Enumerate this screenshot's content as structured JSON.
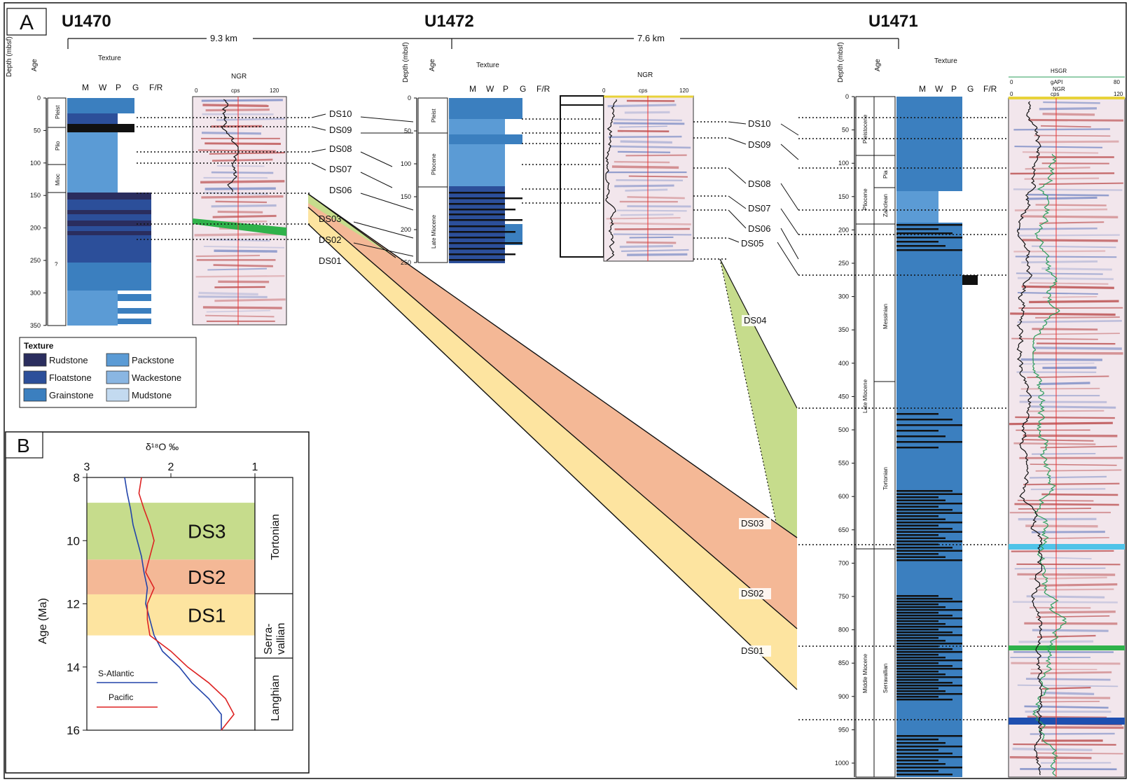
{
  "panel_a": {
    "letter": "A",
    "sites": [
      {
        "name": "U1470",
        "texture_title": "Texture",
        "depth_label": "Depth (mbsf)",
        "age_label": "Age",
        "log_label": "NGR",
        "log_ticks": [
          "0",
          "cps",
          "120"
        ],
        "depth_ticks": [
          "0",
          "50",
          "100",
          "150",
          "200",
          "250",
          "300",
          "350"
        ],
        "ages": [
          "Pleist",
          "Plio",
          "Mioc",
          "?"
        ]
      },
      {
        "name": "U1472",
        "texture_title": "Texture",
        "depth_label": "Depth (mbsf)",
        "age_label": "Age",
        "log_label": "NGR",
        "log_ticks": [
          "0",
          "cps",
          "120"
        ],
        "depth_ticks": [
          "0",
          "50",
          "100",
          "150",
          "200",
          "250"
        ],
        "ages": [
          "Pleist",
          "Pliocene",
          "Late Miocene"
        ]
      },
      {
        "name": "U1471",
        "texture_title": "Texture",
        "depth_label": "Depth (mbsf)",
        "age_label": "Age",
        "log_label": "NGR",
        "log_ticks": [
          "0",
          "cps",
          "120"
        ],
        "hsgr_label": "HSGR",
        "hsgr_ticks": [
          "0",
          "gAPI",
          "80"
        ],
        "depth_ticks": [
          "0",
          "50",
          "100",
          "150",
          "200",
          "250",
          "300",
          "350",
          "400",
          "450",
          "500",
          "550",
          "600",
          "650",
          "700",
          "750",
          "800",
          "850",
          "900",
          "950",
          "1000"
        ],
        "epochs": [
          "Pleistocene",
          "Pliocene",
          "Late Miocene",
          "Middle Miocene"
        ],
        "stages": [
          "Pia",
          "Zanclean",
          "Messinian",
          "Tortonian",
          "Serravallian"
        ]
      }
    ],
    "texture_axis": [
      "M",
      "W",
      "P",
      "G",
      "F/R"
    ],
    "distances": [
      "9.3 km",
      "7.6 km"
    ],
    "sequences_u1470": [
      "DS10",
      "DS09",
      "DS08",
      "DS07",
      "DS06",
      "DS03",
      "DS02",
      "DS01"
    ],
    "sequences_u1471": [
      "DS10",
      "DS09",
      "DS08",
      "DS07",
      "DS06",
      "DS05",
      "DS04",
      "DS03",
      "DS02",
      "DS01"
    ],
    "legend": {
      "title": "Texture",
      "items": [
        "Rudstone",
        "Floatstone",
        "Grainstone",
        "Packstone",
        "Wackestone",
        "Mudstone"
      ],
      "colors": [
        "#2a2d5e",
        "#2c4f9a",
        "#3b7fbf",
        "#5b9bd5",
        "#8ab6e2",
        "#c3daf0"
      ]
    }
  },
  "panel_b": {
    "letter": "B",
    "xlabel": "δ¹⁸O ‰",
    "ylabel": "Age (Ma)",
    "x_ticks": [
      "3",
      "2",
      "1"
    ],
    "y_ticks": [
      "8",
      "10",
      "12",
      "14",
      "16"
    ],
    "bands": [
      "DS3",
      "DS2",
      "DS1"
    ],
    "band_colors": [
      "#c6dc8c",
      "#f4b896",
      "#fde4a0"
    ],
    "stages": [
      "Tortonian",
      "Serra-\nvallian",
      "Langhian"
    ],
    "legend": [
      {
        "name": "S-Atlantic",
        "color": "#2244aa"
      },
      {
        "name": "Pacific",
        "color": "#dd2222"
      }
    ]
  },
  "chart_data": {
    "type": "line",
    "xlabel": "δ¹⁸O ‰",
    "ylabel": "Age (Ma)",
    "xlim": [
      3,
      1
    ],
    "ylim": [
      16,
      8
    ],
    "series": [
      {
        "name": "S-Atlantic",
        "x": [
          2.55,
          2.52,
          2.48,
          2.45,
          2.4,
          2.35,
          2.32,
          2.28,
          2.3,
          2.25,
          2.2,
          2.1,
          1.9,
          1.75,
          1.55,
          1.4,
          1.4
        ],
        "y": [
          8,
          8.5,
          9,
          9.5,
          10,
          10.5,
          11,
          11.5,
          12,
          12.5,
          13,
          13.5,
          14,
          14.5,
          15,
          15.5,
          16
        ]
      },
      {
        "name": "Pacific",
        "x": [
          2.35,
          2.38,
          2.32,
          2.25,
          2.2,
          2.25,
          2.3,
          2.2,
          2.28,
          2.28,
          2.25,
          2.0,
          1.8,
          1.55,
          1.35,
          1.25,
          1.4
        ],
        "y": [
          8,
          8.5,
          9,
          9.5,
          10,
          10.5,
          11,
          11.5,
          12,
          12.5,
          13,
          13.5,
          14,
          14.5,
          15,
          15.5,
          16
        ]
      }
    ],
    "bands": [
      {
        "name": "DS3",
        "from": 8.8,
        "to": 10.6
      },
      {
        "name": "DS2",
        "from": 10.6,
        "to": 11.7
      },
      {
        "name": "DS1",
        "from": 11.7,
        "to": 13.0
      }
    ]
  }
}
